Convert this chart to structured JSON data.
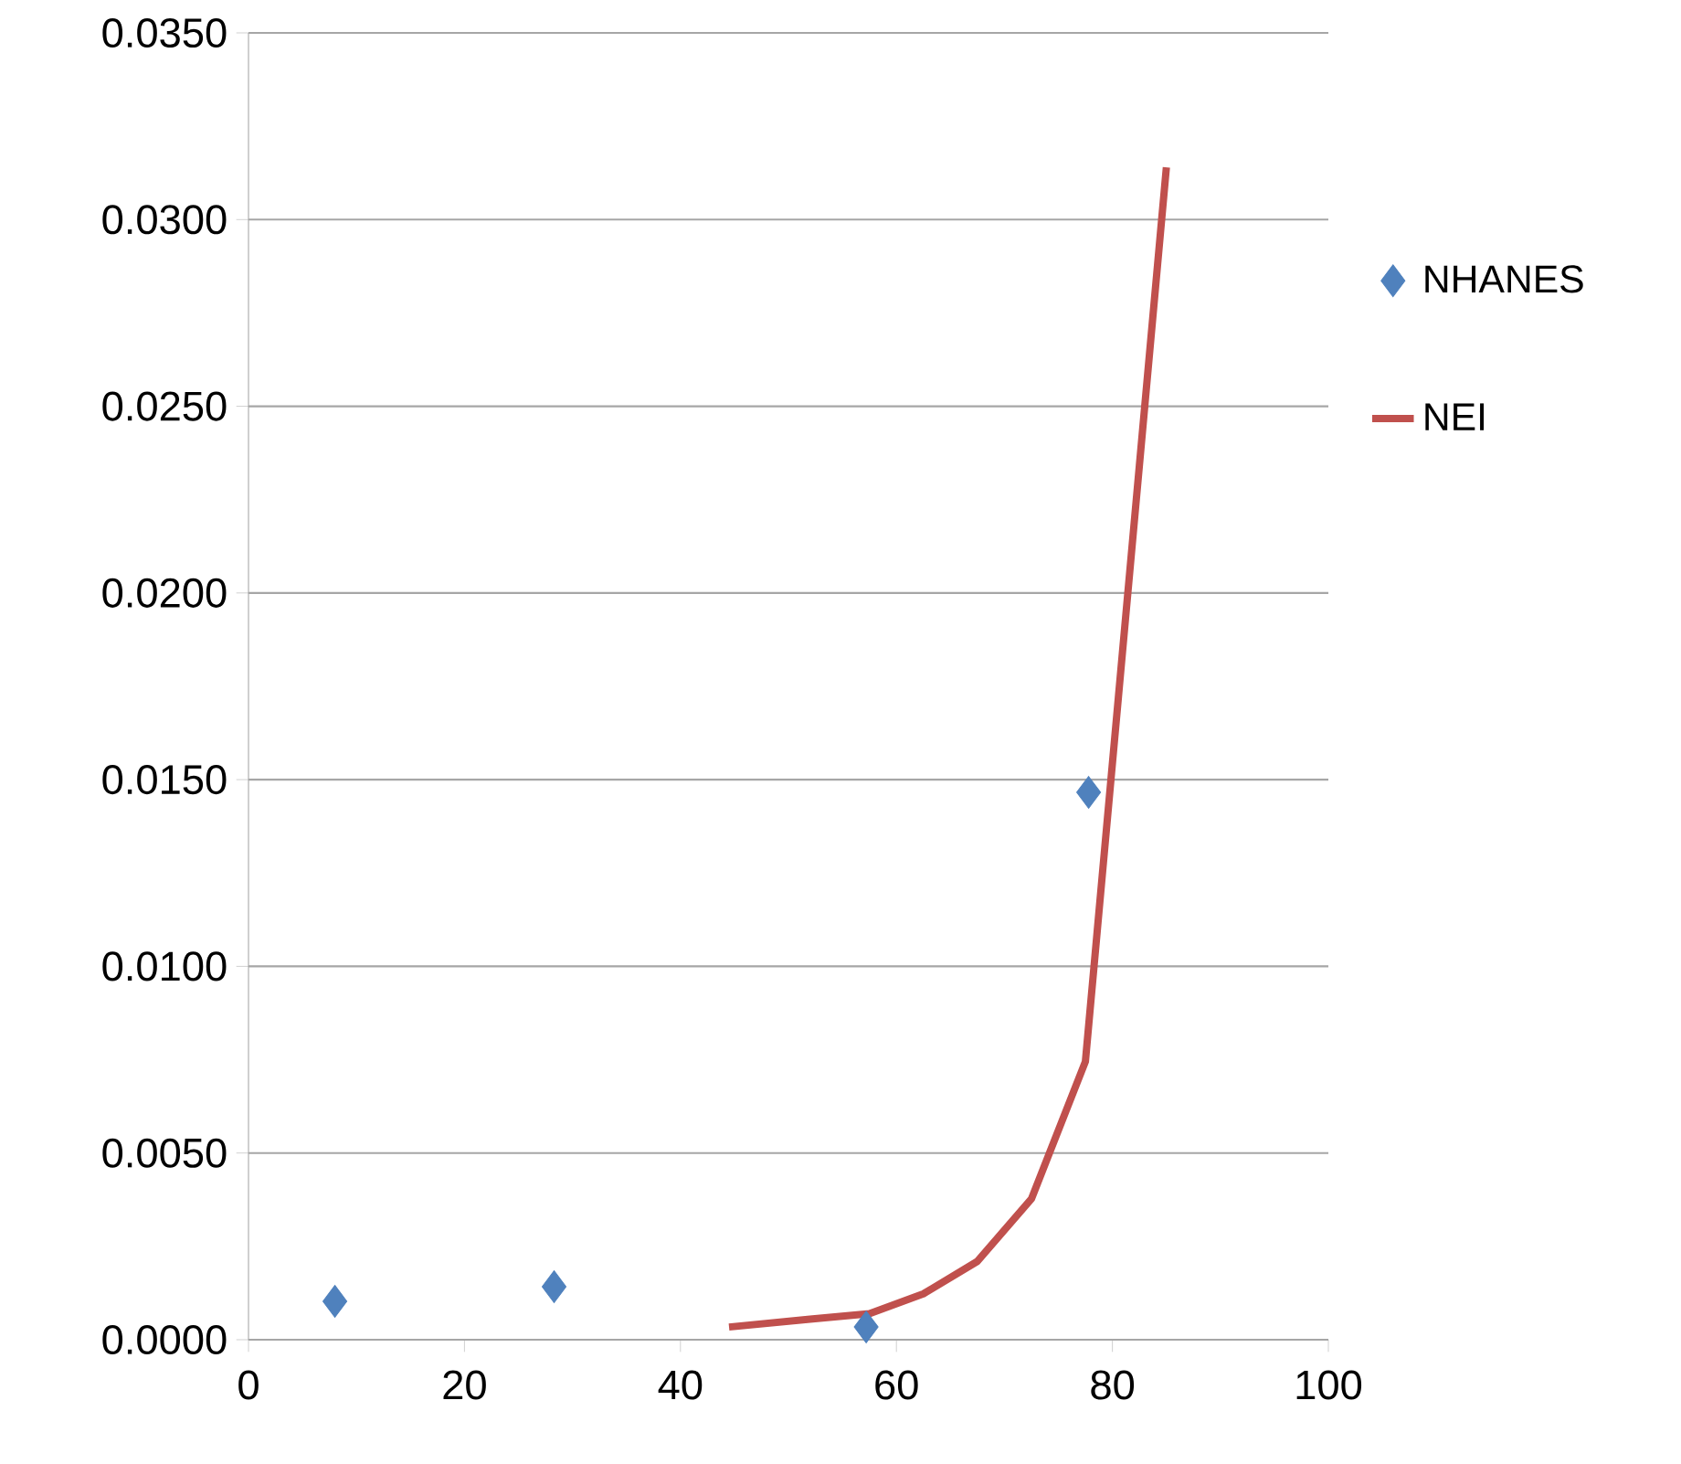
{
  "chart_data": {
    "type": "scatter",
    "xlim": [
      0,
      100
    ],
    "ylim": [
      0,
      0.035
    ],
    "xticks": [
      0,
      20,
      40,
      60,
      80,
      100
    ],
    "yticks": [
      {
        "value": 0,
        "label": "0.0000"
      },
      {
        "value": 0.005,
        "label": "0.0050"
      },
      {
        "value": 0.01,
        "label": "0.0100"
      },
      {
        "value": 0.015,
        "label": "0.0150"
      },
      {
        "value": 0.02,
        "label": "0.0200"
      },
      {
        "value": 0.025,
        "label": "0.0250"
      },
      {
        "value": 0.03,
        "label": "0.0300"
      },
      {
        "value": 0.035,
        "label": "0.0350"
      }
    ],
    "grid": "y",
    "legend": "right",
    "series": [
      {
        "name": "NHANES",
        "marker": "diamond",
        "color": "#4f81bd",
        "x": [
          8,
          28.3,
          57.2,
          77.8
        ],
        "values": [
          0.00103,
          0.00142,
          0.00034,
          0.01466
        ]
      },
      {
        "name": "NEI",
        "type": "line",
        "color": "#c0504d",
        "x": [
          44.5,
          52,
          57.5,
          62.5,
          67.5,
          72.5,
          77.5,
          85
        ],
        "values": [
          0.00034,
          0.00055,
          0.0007,
          0.00123,
          0.0021,
          0.00377,
          0.00745,
          0.0314
        ]
      }
    ]
  }
}
